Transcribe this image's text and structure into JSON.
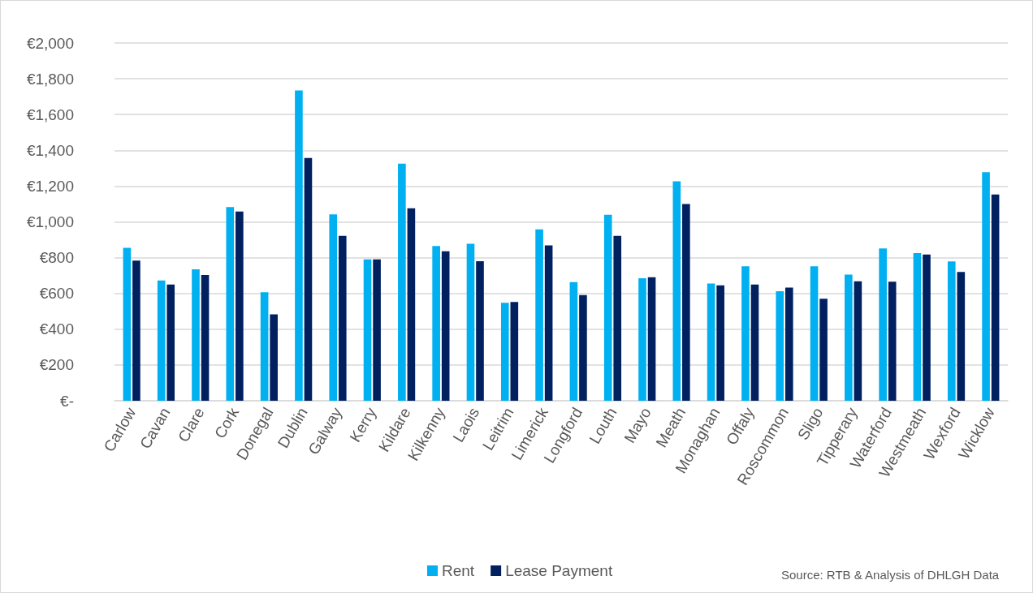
{
  "chart_data": {
    "type": "bar",
    "categories": [
      "Carlow",
      "Cavan",
      "Clare",
      "Cork",
      "Donegal",
      "Dublin",
      "Galway",
      "Kerry",
      "Kildare",
      "Kilkenny",
      "Laois",
      "Leitrim",
      "Limerick",
      "Longford",
      "Louth",
      "Mayo",
      "Meath",
      "Monaghan",
      "Offaly",
      "Roscommon",
      "Sligo",
      "Tipperary",
      "Waterford",
      "Westmeath",
      "Wexford",
      "Wicklow"
    ],
    "series": [
      {
        "name": "Rent",
        "color": "#00b0f0",
        "values": [
          855,
          672,
          735,
          1083,
          607,
          1735,
          1042,
          790,
          1325,
          865,
          878,
          548,
          958,
          663,
          1040,
          685,
          1227,
          655,
          752,
          612,
          752,
          705,
          852,
          825,
          779,
          1278
        ]
      },
      {
        "name": "Lease Payment",
        "color": "#002060",
        "values": [
          783,
          650,
          703,
          1058,
          483,
          1357,
          922,
          790,
          1076,
          836,
          780,
          552,
          869,
          591,
          922,
          690,
          1100,
          645,
          650,
          633,
          570,
          668,
          665,
          817,
          720,
          1153
        ]
      }
    ],
    "ylim": [
      0,
      2000
    ],
    "yticks": [
      {
        "value": 0,
        "label": "€-"
      },
      {
        "value": 200,
        "label": "€200"
      },
      {
        "value": 400,
        "label": "€400"
      },
      {
        "value": 600,
        "label": "€600"
      },
      {
        "value": 800,
        "label": "€800"
      },
      {
        "value": 1000,
        "label": "€1,000"
      },
      {
        "value": 1200,
        "label": "€1,200"
      },
      {
        "value": 1400,
        "label": "€1,400"
      },
      {
        "value": 1600,
        "label": "€1,600"
      },
      {
        "value": 1800,
        "label": "€1,800"
      },
      {
        "value": 2000,
        "label": "€2,000"
      }
    ],
    "grid": "y",
    "legend": "bottom",
    "annotations": [
      "Source: RTB & Analysis of DHLGH Data"
    ]
  }
}
